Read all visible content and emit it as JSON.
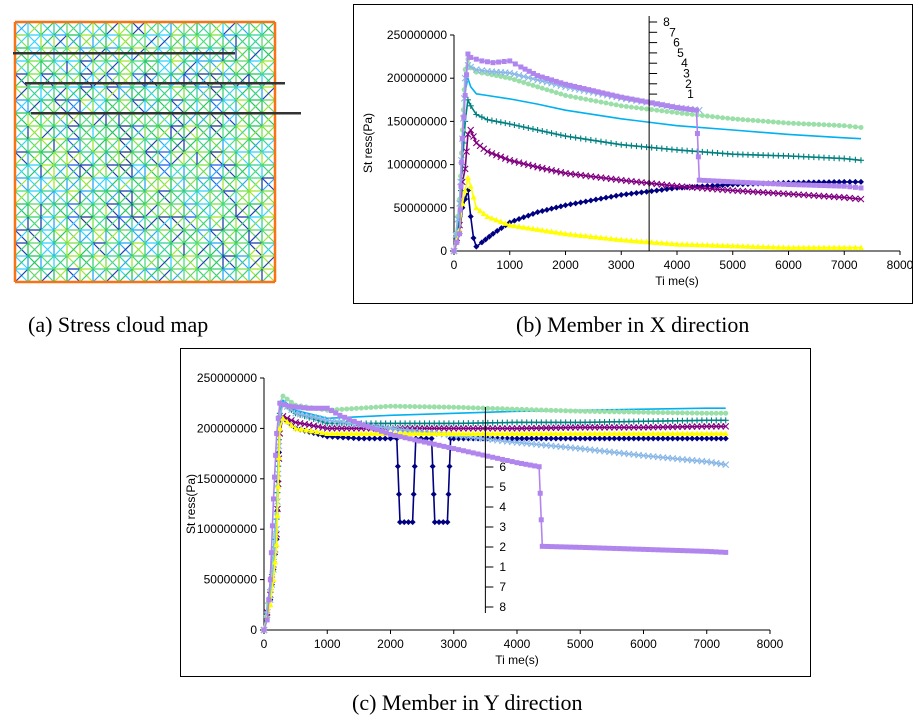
{
  "captions": {
    "a": "(a) Stress cloud map",
    "b": "(b) Member in X direction",
    "c": "(c) Member in Y direction"
  },
  "chart_data": [
    {
      "type": "line",
      "panel": "b",
      "xlabel": "Ti me(s)",
      "ylabel": "St ress(Pa)",
      "xlim": [
        0,
        8000
      ],
      "ylim": [
        0,
        250000000
      ],
      "xticks": [
        0,
        1000,
        2000,
        3000,
        4000,
        5000,
        6000,
        7000,
        8000
      ],
      "yticks": [
        0,
        50000000,
        100000000,
        150000000,
        200000000,
        250000000
      ],
      "grid": false,
      "legend": "inside axes, scale labels 1-8 stacked along a vertical line at t≈3500 s",
      "legend_labels": [
        "8",
        "7",
        "6",
        "5",
        "4",
        "3",
        "2",
        "1"
      ],
      "series": [
        {
          "color": "#000080",
          "marker": "diamond",
          "x": [
            0,
            100,
            150,
            200,
            250,
            300,
            350,
            400,
            500,
            700,
            1000,
            1500,
            2000,
            3000,
            4000,
            5000,
            6000,
            7000,
            7300
          ],
          "y": [
            0,
            20000000,
            50000000,
            60000000,
            70000000,
            40000000,
            15000000,
            5000000,
            10000000,
            20000000,
            33000000,
            45000000,
            53000000,
            65000000,
            73000000,
            77000000,
            79000000,
            80000000,
            80000000
          ]
        },
        {
          "color": "#800080",
          "marker": "x",
          "x": [
            0,
            100,
            150,
            200,
            250,
            300,
            400,
            600,
            1000,
            1500,
            2000,
            3000,
            4000,
            5000,
            6000,
            7000,
            7300
          ],
          "y": [
            0,
            30000000,
            80000000,
            95000000,
            135000000,
            140000000,
            125000000,
            115000000,
            105000000,
            97000000,
            90000000,
            82000000,
            75000000,
            70000000,
            66000000,
            62000000,
            60000000
          ]
        },
        {
          "color": "#008080",
          "marker": "plus",
          "x": [
            0,
            100,
            150,
            200,
            250,
            300,
            400,
            600,
            1000,
            1500,
            2000,
            3000,
            4000,
            5000,
            6000,
            7000,
            7300
          ],
          "y": [
            0,
            40000000,
            100000000,
            150000000,
            175000000,
            168000000,
            158000000,
            152000000,
            147000000,
            140000000,
            133000000,
            123000000,
            117000000,
            112000000,
            110000000,
            107000000,
            105000000
          ]
        },
        {
          "color": "#00b0f0",
          "marker": "none",
          "x": [
            0,
            100,
            150,
            200,
            250,
            300,
            400,
            600,
            1000,
            1500,
            2000,
            3000,
            4000,
            5000,
            6000,
            7000,
            7300
          ],
          "y": [
            0,
            50000000,
            120000000,
            185000000,
            200000000,
            190000000,
            182000000,
            180000000,
            176000000,
            170000000,
            163000000,
            153000000,
            145000000,
            140000000,
            135000000,
            131000000,
            130000000
          ]
        },
        {
          "color": "#9adfa8",
          "marker": "circle",
          "x": [
            0,
            100,
            150,
            200,
            250,
            300,
            400,
            600,
            1000,
            1500,
            2000,
            3000,
            4000,
            5000,
            6000,
            7000,
            7300
          ],
          "y": [
            0,
            60000000,
            140000000,
            210000000,
            222000000,
            212000000,
            207000000,
            205000000,
            200000000,
            190000000,
            180000000,
            168000000,
            160000000,
            153000000,
            148000000,
            145000000,
            143000000
          ]
        },
        {
          "color": "#8ab8e6",
          "marker": "x",
          "x": [
            0,
            100,
            150,
            200,
            250,
            300,
            400,
            600,
            1000,
            1500,
            2000,
            3000,
            4000,
            4400
          ],
          "y": [
            0,
            55000000,
            130000000,
            200000000,
            215000000,
            213000000,
            210000000,
            208000000,
            206000000,
            198000000,
            190000000,
            177000000,
            166000000,
            163000000
          ]
        },
        {
          "color": "#ffff00",
          "marker": "triangle",
          "x": [
            0,
            100,
            150,
            200,
            250,
            300,
            400,
            600,
            1000,
            1500,
            2000,
            3000,
            4000,
            5000,
            6000,
            7000,
            7300
          ],
          "y": [
            0,
            25000000,
            55000000,
            70000000,
            85000000,
            75000000,
            50000000,
            40000000,
            30000000,
            25000000,
            20000000,
            13000000,
            8000000,
            6000000,
            4000000,
            4000000,
            4000000
          ]
        },
        {
          "color": "#b185ee",
          "marker": "square",
          "x": [
            0,
            100,
            150,
            200,
            250,
            300,
            500,
            700,
            1000,
            1200,
            1500,
            2000,
            3000,
            4000,
            4350,
            4400,
            5000,
            6000,
            7000,
            7300
          ],
          "y": [
            0,
            20000000,
            130000000,
            180000000,
            228000000,
            224000000,
            220000000,
            218000000,
            220000000,
            213000000,
            203000000,
            193000000,
            178000000,
            166000000,
            163000000,
            82000000,
            80000000,
            77000000,
            75000000,
            73000000
          ]
        }
      ]
    },
    {
      "type": "line",
      "panel": "c",
      "xlabel": "Ti me(s)",
      "ylabel": "St ress(Pa)",
      "xlim": [
        0,
        8000
      ],
      "ylim": [
        0,
        250000000
      ],
      "xticks": [
        0,
        1000,
        2000,
        3000,
        4000,
        5000,
        6000,
        7000,
        8000
      ],
      "yticks": [
        0,
        50000000,
        100000000,
        150000000,
        200000000,
        250000000
      ],
      "grid": false,
      "legend": "inside axes, scale labels stacked along a vertical line at t≈3500 s",
      "legend_labels": [
        "6",
        "5",
        "4",
        "3",
        "2",
        "1",
        "7",
        "8"
      ],
      "series": [
        {
          "color": "#000080",
          "marker": "diamond",
          "x": [
            0,
            100,
            150,
            200,
            250,
            300,
            500,
            1000,
            1500,
            2000,
            2100,
            2150,
            2350,
            2400,
            2650,
            2700,
            2900,
            2950,
            3000,
            4000,
            5000,
            6000,
            7000,
            7300
          ],
          "y": [
            0,
            30000000,
            60000000,
            90000000,
            205000000,
            210000000,
            200000000,
            192000000,
            190000000,
            190000000,
            190000000,
            107000000,
            107000000,
            190000000,
            190000000,
            107000000,
            107000000,
            190000000,
            190000000,
            190000000,
            190000000,
            190000000,
            190000000,
            190000000
          ]
        },
        {
          "color": "#800080",
          "marker": "x",
          "x": [
            0,
            100,
            150,
            200,
            250,
            300,
            500,
            1000,
            2000,
            3000,
            4000,
            5000,
            6000,
            7000,
            7300
          ],
          "y": [
            0,
            35000000,
            65000000,
            95000000,
            195000000,
            212000000,
            206000000,
            200000000,
            200000000,
            200000000,
            200000000,
            201000000,
            201000000,
            202000000,
            202000000
          ]
        },
        {
          "color": "#008080",
          "marker": "plus",
          "x": [
            0,
            100,
            150,
            200,
            250,
            300,
            500,
            1000,
            2000,
            3000,
            4000,
            5000,
            6000,
            7000,
            7300
          ],
          "y": [
            0,
            40000000,
            70000000,
            110000000,
            215000000,
            225000000,
            215000000,
            205000000,
            205000000,
            205000000,
            206000000,
            206000000,
            207000000,
            208000000,
            208000000
          ]
        },
        {
          "color": "#00b0f0",
          "marker": "none",
          "x": [
            0,
            100,
            150,
            200,
            250,
            300,
            500,
            1000,
            2000,
            3000,
            4000,
            5000,
            6000,
            7000,
            7300
          ],
          "y": [
            0,
            45000000,
            80000000,
            120000000,
            220000000,
            228000000,
            218000000,
            210000000,
            213000000,
            215000000,
            217000000,
            218000000,
            219000000,
            220000000,
            220000000
          ]
        },
        {
          "color": "#9adfa8",
          "marker": "circle",
          "x": [
            0,
            100,
            150,
            200,
            250,
            300,
            500,
            1000,
            2000,
            3000,
            4000,
            5000,
            6000,
            7000,
            7300
          ],
          "y": [
            0,
            40000000,
            75000000,
            115000000,
            225000000,
            232000000,
            223000000,
            218000000,
            222000000,
            221000000,
            219000000,
            217000000,
            216000000,
            215000000,
            215000000
          ]
        },
        {
          "color": "#8ab8e6",
          "marker": "x",
          "x": [
            0,
            100,
            150,
            200,
            250,
            300,
            500,
            1000,
            2000,
            3000,
            4000,
            5000,
            6000,
            7000,
            7300
          ],
          "y": [
            0,
            30000000,
            60000000,
            100000000,
            210000000,
            225000000,
            215000000,
            208000000,
            200000000,
            193000000,
            186000000,
            180000000,
            173000000,
            167000000,
            164000000
          ]
        },
        {
          "color": "#ffff00",
          "marker": "triangle",
          "x": [
            0,
            100,
            150,
            200,
            250,
            300,
            500,
            1000,
            2000,
            3000,
            4000,
            5000,
            6000,
            7000,
            7300
          ],
          "y": [
            0,
            25000000,
            50000000,
            85000000,
            200000000,
            210000000,
            200000000,
            195000000,
            195000000,
            195000000,
            195000000,
            195000000,
            195000000,
            195000000,
            195000000
          ]
        },
        {
          "color": "#b185ee",
          "marker": "square",
          "x": [
            0,
            50,
            100,
            150,
            200,
            250,
            400,
            700,
            1000,
            1200,
            1500,
            2000,
            3000,
            4000,
            4350,
            4400,
            5000,
            6000,
            7000,
            7300
          ],
          "y": [
            0,
            10000000,
            50000000,
            130000000,
            195000000,
            225000000,
            222000000,
            220000000,
            220000000,
            213000000,
            205000000,
            194000000,
            180000000,
            166000000,
            162000000,
            83000000,
            82000000,
            80000000,
            78000000,
            77000000
          ]
        }
      ]
    }
  ]
}
